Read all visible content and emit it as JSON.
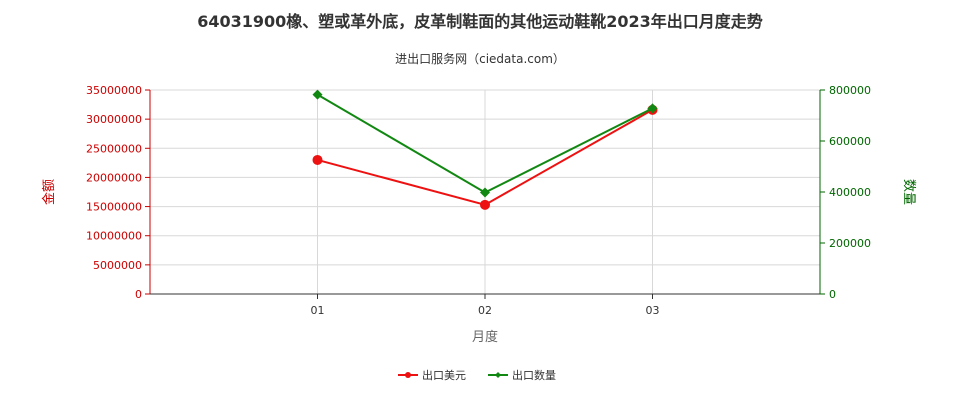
{
  "title": "64031900橡、塑或革外底，皮革制鞋面的其他运动鞋靴2023年出口月度走势",
  "subtitle": "进出口服务网（ciedata.com）",
  "chart_data": {
    "type": "line",
    "categories": [
      "01",
      "02",
      "03"
    ],
    "xlabel": "月度",
    "ylabel_left": "金额",
    "ylabel_right": "数量",
    "ylim_left": [
      0,
      35000000
    ],
    "ylim_right": [
      0,
      800000
    ],
    "yticks_left": [
      "0",
      "5000000",
      "10000000",
      "15000000",
      "20000000",
      "25000000",
      "30000000",
      "35000000"
    ],
    "yticks_right": [
      "0",
      "200000",
      "400000",
      "600000",
      "800000"
    ],
    "grid": true,
    "legend_position": "bottom",
    "series": [
      {
        "name": "出口美元",
        "axis": "left",
        "color": "#ee1111",
        "marker": "circle",
        "values": [
          23000000,
          15300000,
          31600000
        ]
      },
      {
        "name": "出口数量",
        "axis": "right",
        "color": "#118811",
        "marker": "diamond",
        "values": [
          782000,
          398000,
          728000
        ]
      }
    ]
  }
}
